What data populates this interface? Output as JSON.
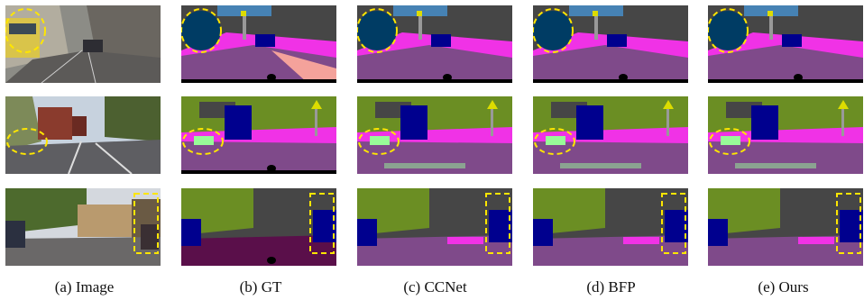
{
  "figure": {
    "columns": [
      {
        "key": "image",
        "caption": "(a)  Image"
      },
      {
        "key": "gt",
        "caption": "(b)  GT"
      },
      {
        "key": "ccnet",
        "caption": "(c)  CCNet"
      },
      {
        "key": "bfp",
        "caption": "(d)  BFP"
      },
      {
        "key": "ours",
        "caption": "(e)  Ours"
      }
    ],
    "rows": [
      {
        "key": "row1",
        "highlight": "ellipse"
      },
      {
        "key": "row2",
        "highlight": "ellipse"
      },
      {
        "key": "row3",
        "highlight": "rectangle"
      }
    ],
    "colors": {
      "road": "#7f4a8a",
      "sidewalk": "#f032e6",
      "building": "#464646",
      "vegetation": "#6b8e23",
      "sky": "#4682b4",
      "car": "#00008e",
      "bus": "#003c64",
      "terrain": "#98fb98",
      "pole": "#999999",
      "sign": "#dcdc00",
      "person": "#dc143c",
      "ego": "#000000",
      "highlight": "#ffe600"
    }
  }
}
